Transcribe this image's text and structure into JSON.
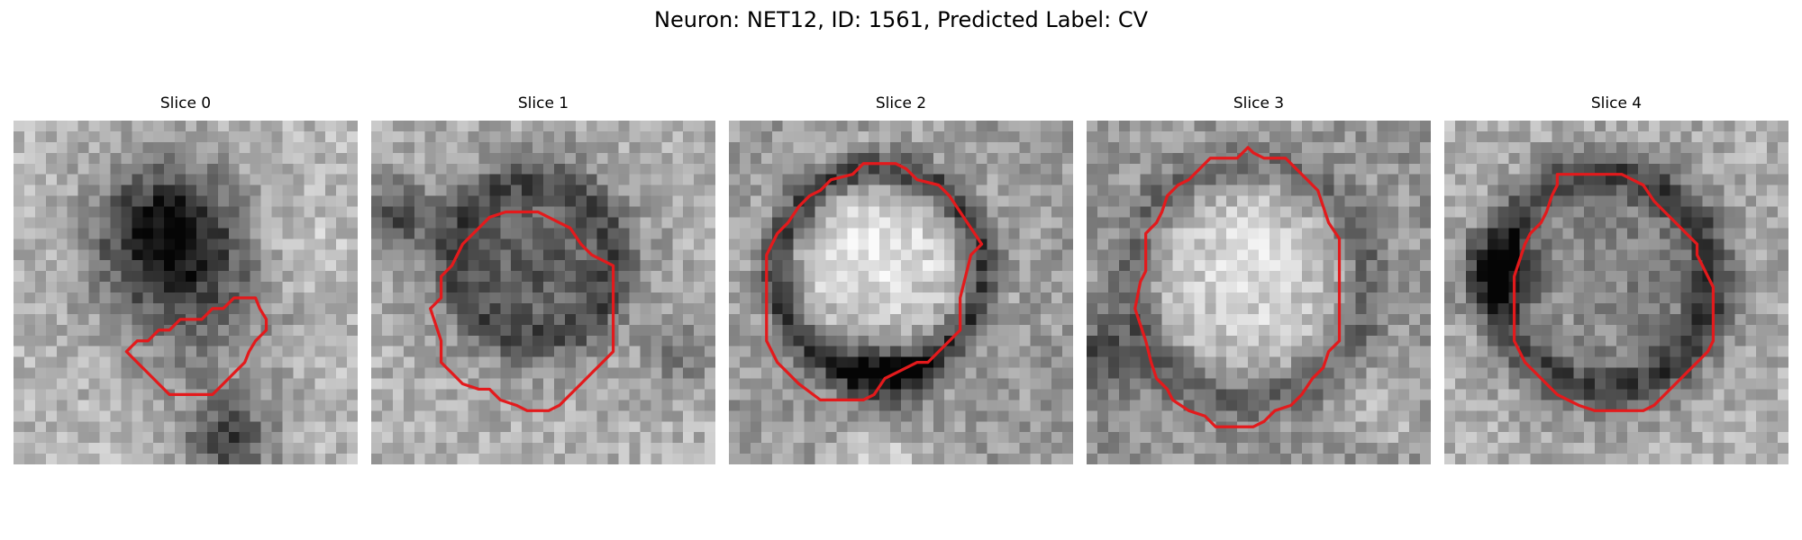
{
  "figure": {
    "title": "Neuron: NET12, ID: 1561, Predicted Label: CV",
    "contour_color": "#e31a1c"
  },
  "panels": [
    {
      "title": "Slice 0"
    },
    {
      "title": "Slice 1"
    },
    {
      "title": "Slice 2"
    },
    {
      "title": "Slice 3"
    },
    {
      "title": "Slice 4"
    }
  ]
}
